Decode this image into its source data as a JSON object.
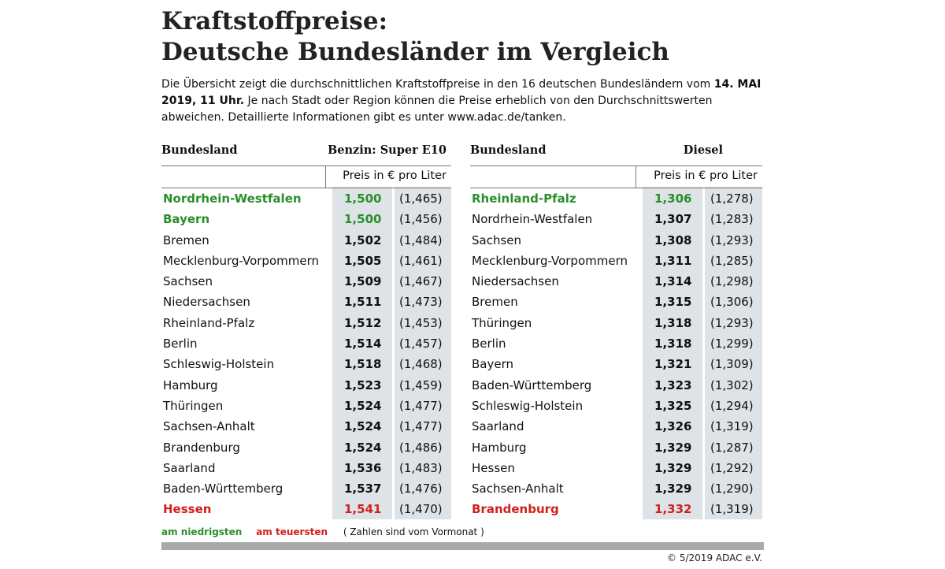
{
  "title_line1": "Kraftstoffpreise:",
  "title_line2": "Deutsche Bundesländer im Vergleich",
  "intro": {
    "part1": "Die Übersicht zeigt die durchschnittlichen Kraftstoffpreise in den 16 deutschen Bundesländern vom ",
    "date": "14. MAI 2019, 11 Uhr.",
    "part2": " Je nach Stadt oder Region können die Preise erheblich von den Durchschnittswerten abweichen. Detaillierte Informationen gibt es unter ",
    "url": "www.adac.de/tanken",
    "part3": "."
  },
  "benzin": {
    "col_state": "Bundesland",
    "col_fuel": "Benzin:  Super E10",
    "unit": "Preis in € pro Liter",
    "rows": [
      {
        "name": "Nordrhein-Westfalen",
        "price": "1,500",
        "prev": "(1,465)",
        "mark": "low"
      },
      {
        "name": "Bayern",
        "price": "1,500",
        "prev": "(1,456)",
        "mark": "low"
      },
      {
        "name": "Bremen",
        "price": "1,502",
        "prev": "(1,484)",
        "mark": ""
      },
      {
        "name": "Mecklenburg-Vorpommern",
        "price": "1,505",
        "prev": "(1,461)",
        "mark": ""
      },
      {
        "name": "Sachsen",
        "price": "1,509",
        "prev": "(1,467)",
        "mark": ""
      },
      {
        "name": "Niedersachsen",
        "price": "1,511",
        "prev": "(1,473)",
        "mark": ""
      },
      {
        "name": "Rheinland-Pfalz",
        "price": "1,512",
        "prev": "(1,453)",
        "mark": ""
      },
      {
        "name": "Berlin",
        "price": "1,514",
        "prev": "(1,457)",
        "mark": ""
      },
      {
        "name": "Schleswig-Holstein",
        "price": "1,518",
        "prev": "(1,468)",
        "mark": ""
      },
      {
        "name": "Hamburg",
        "price": "1,523",
        "prev": "(1,459)",
        "mark": ""
      },
      {
        "name": "Thüringen",
        "price": "1,524",
        "prev": "(1,477)",
        "mark": ""
      },
      {
        "name": "Sachsen-Anhalt",
        "price": "1,524",
        "prev": "(1,477)",
        "mark": ""
      },
      {
        "name": "Brandenburg",
        "price": "1,524",
        "prev": "(1,486)",
        "mark": ""
      },
      {
        "name": "Saarland",
        "price": "1,536",
        "prev": "(1,483)",
        "mark": ""
      },
      {
        "name": "Baden-Württemberg",
        "price": "1,537",
        "prev": "(1,476)",
        "mark": ""
      },
      {
        "name": "Hessen",
        "price": "1,541",
        "prev": "(1,470)",
        "mark": "high"
      }
    ]
  },
  "diesel": {
    "col_state": "Bundesland",
    "col_fuel": "Diesel",
    "unit": "Preis in € pro Liter",
    "rows": [
      {
        "name": "Rheinland-Pfalz",
        "price": "1,306",
        "prev": "(1,278)",
        "mark": "low"
      },
      {
        "name": "Nordrhein-Westfalen",
        "price": "1,307",
        "prev": "(1,283)",
        "mark": ""
      },
      {
        "name": "Sachsen",
        "price": "1,308",
        "prev": "(1,293)",
        "mark": ""
      },
      {
        "name": "Mecklenburg-Vorpommern",
        "price": "1,311",
        "prev": "(1,285)",
        "mark": ""
      },
      {
        "name": "Niedersachsen",
        "price": "1,314",
        "prev": "(1,298)",
        "mark": ""
      },
      {
        "name": "Bremen",
        "price": "1,315",
        "prev": "(1,306)",
        "mark": ""
      },
      {
        "name": "Thüringen",
        "price": "1,318",
        "prev": "(1,293)",
        "mark": ""
      },
      {
        "name": "Berlin",
        "price": "1,318",
        "prev": "(1,299)",
        "mark": ""
      },
      {
        "name": "Bayern",
        "price": "1,321",
        "prev": "(1,309)",
        "mark": ""
      },
      {
        "name": "Baden-Württemberg",
        "price": "1,323",
        "prev": "(1,302)",
        "mark": ""
      },
      {
        "name": "Schleswig-Holstein",
        "price": "1,325",
        "prev": "(1,294)",
        "mark": ""
      },
      {
        "name": "Saarland",
        "price": "1,326",
        "prev": "(1,319)",
        "mark": ""
      },
      {
        "name": "Hamburg",
        "price": "1,329",
        "prev": "(1,287)",
        "mark": ""
      },
      {
        "name": "Hessen",
        "price": "1,329",
        "prev": "(1,292)",
        "mark": ""
      },
      {
        "name": "Sachsen-Anhalt",
        "price": "1,329",
        "prev": "(1,290)",
        "mark": ""
      },
      {
        "name": "Brandenburg",
        "price": "1,332",
        "prev": "(1,319)",
        "mark": "high"
      }
    ]
  },
  "legend": {
    "low": "am niedrigsten",
    "high": "am teuersten",
    "note": "( Zahlen sind vom Vormonat )"
  },
  "copyright": "© 5/2019 ADAC e.V.",
  "colors": {
    "low": "#2a8f2a",
    "high": "#d0201c",
    "column_bg": "#dde3e7",
    "footer_bar": "#a7aaad"
  }
}
